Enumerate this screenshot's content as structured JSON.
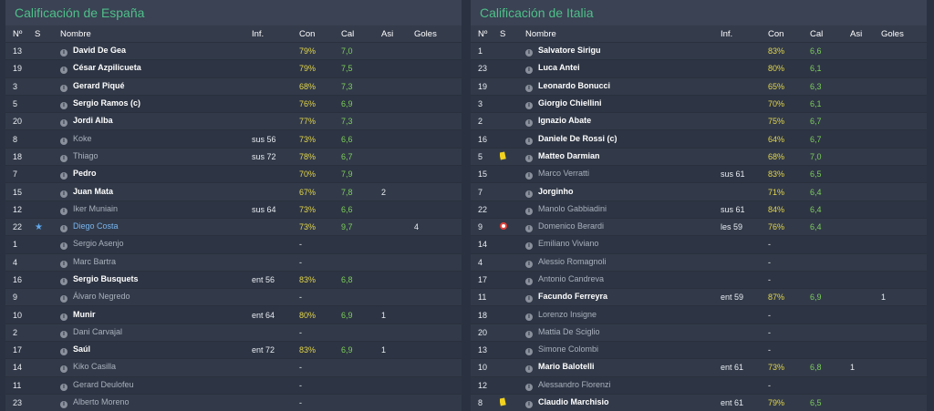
{
  "left": {
    "title": "Calificación de España",
    "headers": {
      "no": "Nº",
      "s": "S",
      "name": "Nombre",
      "inf": "Inf.",
      "con": "Con",
      "cal": "Cal",
      "asi": "Asi",
      "goles": "Goles"
    },
    "rows": [
      {
        "no": "13",
        "status": "",
        "name": "David De Gea",
        "style": "bold",
        "inf": "",
        "con": "79%",
        "cal": "7,0",
        "asi": "",
        "goles": ""
      },
      {
        "no": "19",
        "status": "",
        "name": "César Azpilicueta",
        "style": "bold",
        "inf": "",
        "con": "79%",
        "cal": "7,5",
        "asi": "",
        "goles": ""
      },
      {
        "no": "3",
        "status": "",
        "name": "Gerard Piqué",
        "style": "bold",
        "inf": "",
        "con": "68%",
        "cal": "7,3",
        "asi": "",
        "goles": ""
      },
      {
        "no": "5",
        "status": "",
        "name": "Sergio Ramos (c)",
        "style": "bold",
        "inf": "",
        "con": "76%",
        "cal": "6,9",
        "asi": "",
        "goles": ""
      },
      {
        "no": "20",
        "status": "",
        "name": "Jordi Alba",
        "style": "bold",
        "inf": "",
        "con": "77%",
        "cal": "7,3",
        "asi": "",
        "goles": ""
      },
      {
        "no": "8",
        "status": "",
        "name": "Koke",
        "style": "sub",
        "inf": "sus 56",
        "con": "73%",
        "cal": "6,6",
        "asi": "",
        "goles": ""
      },
      {
        "no": "18",
        "status": "",
        "name": "Thiago",
        "style": "sub",
        "inf": "sus 72",
        "con": "78%",
        "cal": "6,7",
        "asi": "",
        "goles": ""
      },
      {
        "no": "7",
        "status": "",
        "name": "Pedro",
        "style": "bold",
        "inf": "",
        "con": "70%",
        "cal": "7,9",
        "asi": "",
        "goles": ""
      },
      {
        "no": "15",
        "status": "",
        "name": "Juan Mata",
        "style": "bold",
        "inf": "",
        "con": "67%",
        "cal": "7,8",
        "asi": "2",
        "goles": ""
      },
      {
        "no": "12",
        "status": "",
        "name": "Iker Muniain",
        "style": "sub",
        "inf": "sus 64",
        "con": "73%",
        "cal": "6,6",
        "asi": "",
        "goles": ""
      },
      {
        "no": "22",
        "status": "star",
        "name": "Diego Costa",
        "style": "star",
        "inf": "",
        "con": "73%",
        "cal": "9,7",
        "asi": "",
        "goles": "4"
      },
      {
        "no": "1",
        "status": "",
        "name": "Sergio Asenjo",
        "style": "sub",
        "inf": "",
        "con": "-",
        "cal": "",
        "asi": "",
        "goles": ""
      },
      {
        "no": "4",
        "status": "",
        "name": "Marc Bartra",
        "style": "sub",
        "inf": "",
        "con": "-",
        "cal": "",
        "asi": "",
        "goles": ""
      },
      {
        "no": "16",
        "status": "",
        "name": "Sergio Busquets",
        "style": "bold",
        "inf": "ent 56",
        "con": "83%",
        "cal": "6,8",
        "asi": "",
        "goles": ""
      },
      {
        "no": "9",
        "status": "",
        "name": "Álvaro Negredo",
        "style": "sub",
        "inf": "",
        "con": "-",
        "cal": "",
        "asi": "",
        "goles": ""
      },
      {
        "no": "10",
        "status": "",
        "name": "Munir",
        "style": "bold",
        "inf": "ent 64",
        "con": "80%",
        "cal": "6,9",
        "asi": "1",
        "goles": ""
      },
      {
        "no": "2",
        "status": "",
        "name": "Dani Carvajal",
        "style": "sub",
        "inf": "",
        "con": "-",
        "cal": "",
        "asi": "",
        "goles": ""
      },
      {
        "no": "17",
        "status": "",
        "name": "Saúl",
        "style": "bold",
        "inf": "ent 72",
        "con": "83%",
        "cal": "6,9",
        "asi": "1",
        "goles": ""
      },
      {
        "no": "14",
        "status": "",
        "name": "Kiko Casilla",
        "style": "sub",
        "inf": "",
        "con": "-",
        "cal": "",
        "asi": "",
        "goles": ""
      },
      {
        "no": "11",
        "status": "",
        "name": "Gerard Deulofeu",
        "style": "sub",
        "inf": "",
        "con": "-",
        "cal": "",
        "asi": "",
        "goles": ""
      },
      {
        "no": "23",
        "status": "",
        "name": "Alberto Moreno",
        "style": "sub",
        "inf": "",
        "con": "-",
        "cal": "",
        "asi": "",
        "goles": ""
      }
    ]
  },
  "right": {
    "title": "Calificación de Italia",
    "headers": {
      "no": "Nº",
      "s": "S",
      "name": "Nombre",
      "inf": "Inf.",
      "con": "Con",
      "cal": "Cal",
      "asi": "Asi",
      "goles": "Goles"
    },
    "rows": [
      {
        "no": "1",
        "status": "",
        "name": "Salvatore Sirigu",
        "style": "bold",
        "inf": "",
        "con": "83%",
        "cal": "6,6",
        "asi": "",
        "goles": ""
      },
      {
        "no": "23",
        "status": "",
        "name": "Luca Antei",
        "style": "bold",
        "inf": "",
        "con": "80%",
        "cal": "6,1",
        "asi": "",
        "goles": ""
      },
      {
        "no": "19",
        "status": "",
        "name": "Leonardo Bonucci",
        "style": "bold",
        "inf": "",
        "con": "65%",
        "cal": "6,3",
        "asi": "",
        "goles": ""
      },
      {
        "no": "3",
        "status": "",
        "name": "Giorgio Chiellini",
        "style": "bold",
        "inf": "",
        "con": "70%",
        "cal": "6,1",
        "asi": "",
        "goles": ""
      },
      {
        "no": "2",
        "status": "",
        "name": "Ignazio Abate",
        "style": "bold",
        "inf": "",
        "con": "75%",
        "cal": "6,7",
        "asi": "",
        "goles": ""
      },
      {
        "no": "16",
        "status": "",
        "name": "Daniele De Rossi (c)",
        "style": "bold",
        "inf": "",
        "con": "64%",
        "cal": "6,7",
        "asi": "",
        "goles": ""
      },
      {
        "no": "5",
        "status": "yellow",
        "name": "Matteo Darmian",
        "style": "bold",
        "inf": "",
        "con": "68%",
        "cal": "7,0",
        "asi": "",
        "goles": ""
      },
      {
        "no": "15",
        "status": "",
        "name": "Marco Verratti",
        "style": "sub",
        "inf": "sus 61",
        "con": "83%",
        "cal": "6,5",
        "asi": "",
        "goles": ""
      },
      {
        "no": "7",
        "status": "",
        "name": "Jorginho",
        "style": "bold",
        "inf": "",
        "con": "71%",
        "cal": "6,4",
        "asi": "",
        "goles": ""
      },
      {
        "no": "22",
        "status": "",
        "name": "Manolo Gabbiadini",
        "style": "sub",
        "inf": "sus 61",
        "con": "84%",
        "cal": "6,4",
        "asi": "",
        "goles": ""
      },
      {
        "no": "9",
        "status": "injury",
        "name": "Domenico Berardi",
        "style": "sub",
        "inf": "les 59",
        "con": "76%",
        "cal": "6,4",
        "asi": "",
        "goles": ""
      },
      {
        "no": "14",
        "status": "",
        "name": "Emiliano Viviano",
        "style": "sub",
        "inf": "",
        "con": "-",
        "cal": "",
        "asi": "",
        "goles": ""
      },
      {
        "no": "4",
        "status": "",
        "name": "Alessio Romagnoli",
        "style": "sub",
        "inf": "",
        "con": "-",
        "cal": "",
        "asi": "",
        "goles": ""
      },
      {
        "no": "17",
        "status": "",
        "name": "Antonio Candreva",
        "style": "sub",
        "inf": "",
        "con": "-",
        "cal": "",
        "asi": "",
        "goles": ""
      },
      {
        "no": "11",
        "status": "",
        "name": "Facundo Ferreyra",
        "style": "bold",
        "inf": "ent 59",
        "con": "87%",
        "cal": "6,9",
        "asi": "",
        "goles": "1"
      },
      {
        "no": "18",
        "status": "",
        "name": "Lorenzo Insigne",
        "style": "sub",
        "inf": "",
        "con": "-",
        "cal": "",
        "asi": "",
        "goles": ""
      },
      {
        "no": "20",
        "status": "",
        "name": "Mattia De Sciglio",
        "style": "sub",
        "inf": "",
        "con": "-",
        "cal": "",
        "asi": "",
        "goles": ""
      },
      {
        "no": "13",
        "status": "",
        "name": "Simone Colombi",
        "style": "sub",
        "inf": "",
        "con": "-",
        "cal": "",
        "asi": "",
        "goles": ""
      },
      {
        "no": "10",
        "status": "",
        "name": "Mario Balotelli",
        "style": "bold",
        "inf": "ent 61",
        "con": "73%",
        "cal": "6,8",
        "asi": "1",
        "goles": ""
      },
      {
        "no": "12",
        "status": "",
        "name": "Alessandro Florenzi",
        "style": "sub",
        "inf": "",
        "con": "-",
        "cal": "",
        "asi": "",
        "goles": ""
      },
      {
        "no": "8",
        "status": "yellow",
        "name": "Claudio Marchisio",
        "style": "bold",
        "inf": "ent 61",
        "con": "79%",
        "cal": "6,5",
        "asi": "",
        "goles": ""
      }
    ]
  }
}
